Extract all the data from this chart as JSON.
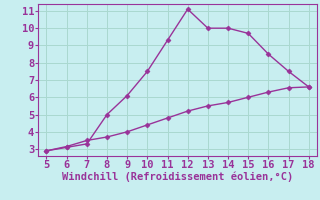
{
  "x": [
    5,
    6,
    7,
    8,
    9,
    10,
    11,
    12,
    13,
    14,
    15,
    16,
    17,
    18
  ],
  "y_upper": [
    2.9,
    3.1,
    3.3,
    5.0,
    6.1,
    7.5,
    9.3,
    11.1,
    10.0,
    10.0,
    9.7,
    8.5,
    7.5,
    6.6
  ],
  "y_lower": [
    2.9,
    3.15,
    3.5,
    3.7,
    4.0,
    4.4,
    4.8,
    5.2,
    5.5,
    5.7,
    6.0,
    6.3,
    6.55,
    6.6
  ],
  "line_color": "#993399",
  "bg_color": "#c8eef0",
  "grid_color": "#aad8d0",
  "xlabel": "Windchill (Refroidissement éolien,°C)",
  "xlabel_color": "#993399",
  "xlim": [
    4.6,
    18.4
  ],
  "ylim": [
    2.6,
    11.4
  ],
  "xticks": [
    5,
    6,
    7,
    8,
    9,
    10,
    11,
    12,
    13,
    14,
    15,
    16,
    17,
    18
  ],
  "yticks": [
    3,
    4,
    5,
    6,
    7,
    8,
    9,
    10,
    11
  ],
  "tick_color": "#993399",
  "marker": "D",
  "marker_size": 2.5,
  "line_width": 1.0,
  "tick_fontsize": 7.5,
  "xlabel_fontsize": 7.5
}
